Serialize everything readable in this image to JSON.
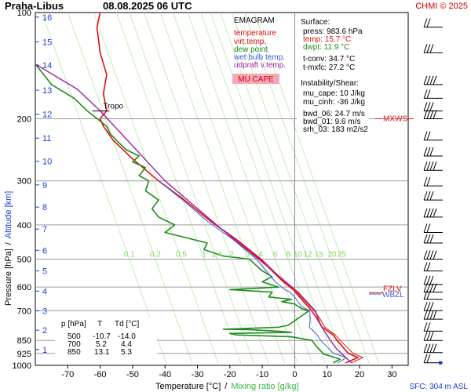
{
  "header": {
    "station": "Praha-Libus",
    "datetime": "08.08.2025 06 UTC",
    "credit": "CHMI © 2025"
  },
  "legend": {
    "title": "EMAGRAM",
    "items": [
      {
        "label": "temperature",
        "color": "#e01010"
      },
      {
        "label": "virt.temp.",
        "color": "#e01010"
      },
      {
        "label": "dew point",
        "color": "#1e8c1e"
      },
      {
        "label": "wet bulb temp.",
        "color": "#3a5bd9"
      },
      {
        "label": "udpraft v.temp.",
        "color": "#a020a0"
      }
    ],
    "badge": "MU CAPE",
    "badge_color": "#f7a8b8"
  },
  "info": {
    "surface_title": "Surface:",
    "press": "press: 983.6 hPa",
    "temp": "temp: 15.7 °C",
    "dwpt": "dwpt: 11.9 °C",
    "tconv": "t-conv: 34.7 °C",
    "tmxfc": "t-mxfc: 27.2 °C",
    "instab_title": "Instability/Shear:",
    "mu_cape": "mu_cape: 10 J/kg",
    "mu_cinh": "mu_cinh: -36 J/kg",
    "bwd06": "bwd_06: 24.7 m/s",
    "bwd01": "bwd_01: 9.6 m/s",
    "srh03": "srh_03: 183 m2/s2"
  },
  "table": {
    "headers": [
      "p [hPa]",
      "T",
      "Td [°C]"
    ],
    "rows": [
      [
        "500",
        "-10.7",
        "-14.0"
      ],
      [
        "700",
        "5.2",
        "4.4"
      ],
      [
        "850",
        "13.1",
        "5.3"
      ]
    ]
  },
  "level_labels": {
    "tropo": "Tropo",
    "mxws": "MXWS",
    "fzlv": "FZLV",
    "wbzl": "WBZL"
  },
  "axis": {
    "y_label_left": "Pressure [hPa]",
    "y_sep": "/",
    "y_label_right": "Altitude [km]",
    "x_label_left": "Temperature [°C]",
    "x_sep": "/",
    "x_label_right": "Mixing ratio [g/kg]",
    "sfc": "SFC: 304 m ASL"
  },
  "chart_data": {
    "type": "line",
    "x_scale": "temperature (°C)",
    "y_scale": "log pressure (hPa)",
    "xlim": [
      -80,
      35
    ],
    "ylim": [
      1000,
      100
    ],
    "x_ticks": [
      -70,
      -60,
      -50,
      -40,
      -30,
      -20,
      -10,
      0,
      10,
      20,
      30
    ],
    "pressure_ticks": [
      100,
      200,
      300,
      400,
      500,
      600,
      700,
      850,
      925,
      1000
    ],
    "altitude_ticks_km": [
      {
        "km": "1",
        "p": 902
      },
      {
        "km": "2",
        "p": 795
      },
      {
        "km": "3",
        "p": 701
      },
      {
        "km": "4",
        "p": 616
      },
      {
        "km": "5",
        "p": 540
      },
      {
        "km": "6",
        "p": 472
      },
      {
        "km": "7",
        "p": 411
      },
      {
        "km": "8",
        "p": 356
      },
      {
        "km": "9",
        "p": 308
      },
      {
        "km": "10",
        "p": 264
      },
      {
        "km": "11",
        "p": 227
      },
      {
        "km": "12",
        "p": 194
      },
      {
        "km": "13",
        "p": 166
      },
      {
        "km": "14",
        "p": 141
      },
      {
        "km": "15",
        "p": 121
      },
      {
        "km": "16",
        "p": 103
      }
    ],
    "mixing_ratio_labels": [
      {
        "label": "0.1",
        "x": -51
      },
      {
        "label": "0.2",
        "x": -43
      },
      {
        "label": "0.5",
        "x": -35
      },
      {
        "label": "1",
        "x": -28
      },
      {
        "label": "1.4",
        "x": -24
      },
      {
        "label": "2",
        "x": -19.5
      },
      {
        "label": "3",
        "x": -14.5
      },
      {
        "label": "4",
        "x": -10.5
      },
      {
        "label": "6",
        "x": -6
      },
      {
        "label": "8",
        "x": -2
      },
      {
        "label": "10",
        "x": 1
      },
      {
        "label": "12",
        "x": 4
      },
      {
        "label": "15",
        "x": 7.5
      },
      {
        "label": "20",
        "x": 11.5
      },
      {
        "label": "25",
        "x": 14.5
      }
    ],
    "mixing_ratio_label_pressure": 500,
    "series": [
      {
        "name": "temperature",
        "color": "#e01010",
        "width": 1.6,
        "points": [
          [
            15.7,
            983.6
          ],
          [
            19.5,
            950
          ],
          [
            16.5,
            925
          ],
          [
            13.1,
            850
          ],
          [
            11.8,
            820
          ],
          [
            8.5,
            780
          ],
          [
            7,
            740
          ],
          [
            5.2,
            700
          ],
          [
            4,
            680
          ],
          [
            1.5,
            640
          ],
          [
            -0.5,
            610
          ],
          [
            -3.5,
            580
          ],
          [
            -10.7,
            500
          ],
          [
            -18,
            440
          ],
          [
            -26,
            390
          ],
          [
            -34,
            340
          ],
          [
            -42,
            300
          ],
          [
            -50,
            260
          ],
          [
            -56,
            230
          ],
          [
            -59,
            210
          ],
          [
            -60,
            200
          ],
          [
            -58,
            190
          ],
          [
            -59,
            170
          ],
          [
            -58,
            150
          ],
          [
            -60,
            130
          ],
          [
            -61,
            110
          ],
          [
            -60,
            100
          ]
        ]
      },
      {
        "name": "virt.temp.",
        "color": "#e01010",
        "width": 1.0,
        "points": [
          [
            17.5,
            983.6
          ],
          [
            21,
            950
          ],
          [
            18,
            925
          ],
          [
            14,
            850
          ],
          [
            12.5,
            820
          ],
          [
            9.3,
            780
          ],
          [
            7.9,
            740
          ],
          [
            6,
            700
          ],
          [
            4.6,
            680
          ],
          [
            2,
            640
          ],
          [
            0,
            610
          ],
          [
            -3,
            580
          ],
          [
            -10.3,
            500
          ],
          [
            -17.8,
            440
          ],
          [
            -25.9,
            390
          ],
          [
            -34,
            340
          ],
          [
            -42,
            300
          ]
        ]
      },
      {
        "name": "dew point",
        "color": "#1e8c1e",
        "width": 1.6,
        "points": [
          [
            11.9,
            983.6
          ],
          [
            14,
            960
          ],
          [
            9,
            930
          ],
          [
            7,
            890
          ],
          [
            5.3,
            850
          ],
          [
            -1,
            830
          ],
          [
            -18,
            820
          ],
          [
            -20,
            812
          ],
          [
            -1,
            806
          ],
          [
            -5,
            800
          ],
          [
            -14,
            792
          ],
          [
            -22,
            790
          ],
          [
            -5,
            780
          ],
          [
            -2,
            770
          ],
          [
            4.4,
            700
          ],
          [
            2,
            690
          ],
          [
            0,
            670
          ],
          [
            -4,
            660
          ],
          [
            -1,
            650
          ],
          [
            -8,
            640
          ],
          [
            -7,
            620
          ],
          [
            -20,
            610
          ],
          [
            -5,
            600
          ],
          [
            -10,
            580
          ],
          [
            -7,
            560
          ],
          [
            -10,
            540
          ],
          [
            -14,
            500
          ],
          [
            -22,
            490
          ],
          [
            -28,
            470
          ],
          [
            -27,
            450
          ],
          [
            -40,
            420
          ],
          [
            -37,
            400
          ],
          [
            -42,
            380
          ],
          [
            -44,
            360
          ],
          [
            -42,
            340
          ],
          [
            -46,
            320
          ],
          [
            -45,
            300
          ],
          [
            -48,
            290
          ],
          [
            -46,
            275
          ],
          [
            -50,
            265
          ],
          [
            -48,
            255
          ],
          [
            -52,
            245
          ],
          [
            -55,
            230
          ],
          [
            -57,
            220
          ],
          [
            -58,
            210
          ],
          [
            -64,
            190
          ],
          [
            -68,
            175
          ],
          [
            -75,
            160
          ],
          [
            -80,
            140
          ]
        ]
      },
      {
        "name": "wet bulb temp.",
        "color": "#3a5bd9",
        "width": 1.0,
        "points": [
          [
            13.3,
            983.6
          ],
          [
            16,
            950
          ],
          [
            12,
            925
          ],
          [
            8,
            850
          ],
          [
            7,
            820
          ],
          [
            4.5,
            780
          ],
          [
            4.8,
            740
          ],
          [
            4.6,
            700
          ],
          [
            2,
            680
          ],
          [
            0,
            640
          ],
          [
            -1.5,
            620
          ],
          [
            -3,
            610
          ],
          [
            -6,
            580
          ],
          [
            -11.8,
            500
          ],
          [
            -19,
            440
          ],
          [
            -27,
            390
          ],
          [
            -34.5,
            340
          ],
          [
            -42,
            300
          ]
        ]
      },
      {
        "name": "udpraft v.temp.",
        "color": "#a020a0",
        "width": 1.4,
        "points": [
          [
            17.5,
            983.6
          ],
          [
            13,
            900
          ],
          [
            11,
            850
          ],
          [
            8,
            770
          ],
          [
            6.3,
            700
          ],
          [
            1,
            620
          ],
          [
            -10,
            510
          ],
          [
            -20,
            430
          ],
          [
            -40,
            300
          ],
          [
            -60,
            190
          ],
          [
            -67,
            165
          ],
          [
            -80,
            140
          ]
        ]
      }
    ],
    "level_markers": [
      {
        "name": "Tropo",
        "p": 190,
        "x": -62
      },
      {
        "name": "MXWS",
        "p": 200
      },
      {
        "name": "FZLV",
        "p": 607
      },
      {
        "name": "WBZL",
        "p": 628
      }
    ],
    "wind_barb_pressures": [
      110,
      130,
      160,
      175,
      190,
      200,
      230,
      255,
      280,
      310,
      340,
      380,
      420,
      450,
      500,
      540,
      590,
      620,
      650,
      700,
      740,
      800,
      850,
      920,
      983.6
    ]
  }
}
